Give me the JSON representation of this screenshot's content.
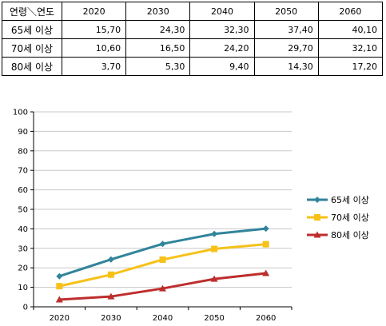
{
  "table": {
    "corner_label": "연령＼연도",
    "columns": [
      "2020",
      "2030",
      "2040",
      "2050",
      "2060"
    ],
    "rows": [
      {
        "label": "65세 이상",
        "values": [
          "15,70",
          "24,30",
          "32,30",
          "37,40",
          "40,10"
        ]
      },
      {
        "label": "70세 이상",
        "values": [
          "10,60",
          "16,50",
          "24,20",
          "29,70",
          "32,10"
        ]
      },
      {
        "label": "80세 이상",
        "values": [
          "3,70",
          "5,30",
          "9,40",
          "14,30",
          "17,20"
        ]
      }
    ]
  },
  "chart_data": {
    "type": "line",
    "title": "",
    "xlabel": "",
    "ylabel": "",
    "categories": [
      "2020",
      "2030",
      "2040",
      "2050",
      "2060"
    ],
    "ylim": [
      0,
      100
    ],
    "yticks": [
      "0",
      "10",
      "20",
      "30",
      "40",
      "50",
      "60",
      "70",
      "80",
      "90",
      "100"
    ],
    "grid": true,
    "legend_position": "right",
    "series": [
      {
        "name": "65세 이상",
        "values": [
          15.7,
          24.3,
          32.3,
          37.4,
          40.1
        ],
        "color": "#31849b",
        "marker": "diamond"
      },
      {
        "name": "70세 이상",
        "values": [
          10.6,
          16.5,
          24.2,
          29.7,
          32.1
        ],
        "color": "#f7c118",
        "marker": "square"
      },
      {
        "name": "80세 이상",
        "values": [
          3.7,
          5.3,
          9.4,
          14.3,
          17.2
        ],
        "color": "#be2d2d",
        "marker": "triangle"
      }
    ]
  }
}
